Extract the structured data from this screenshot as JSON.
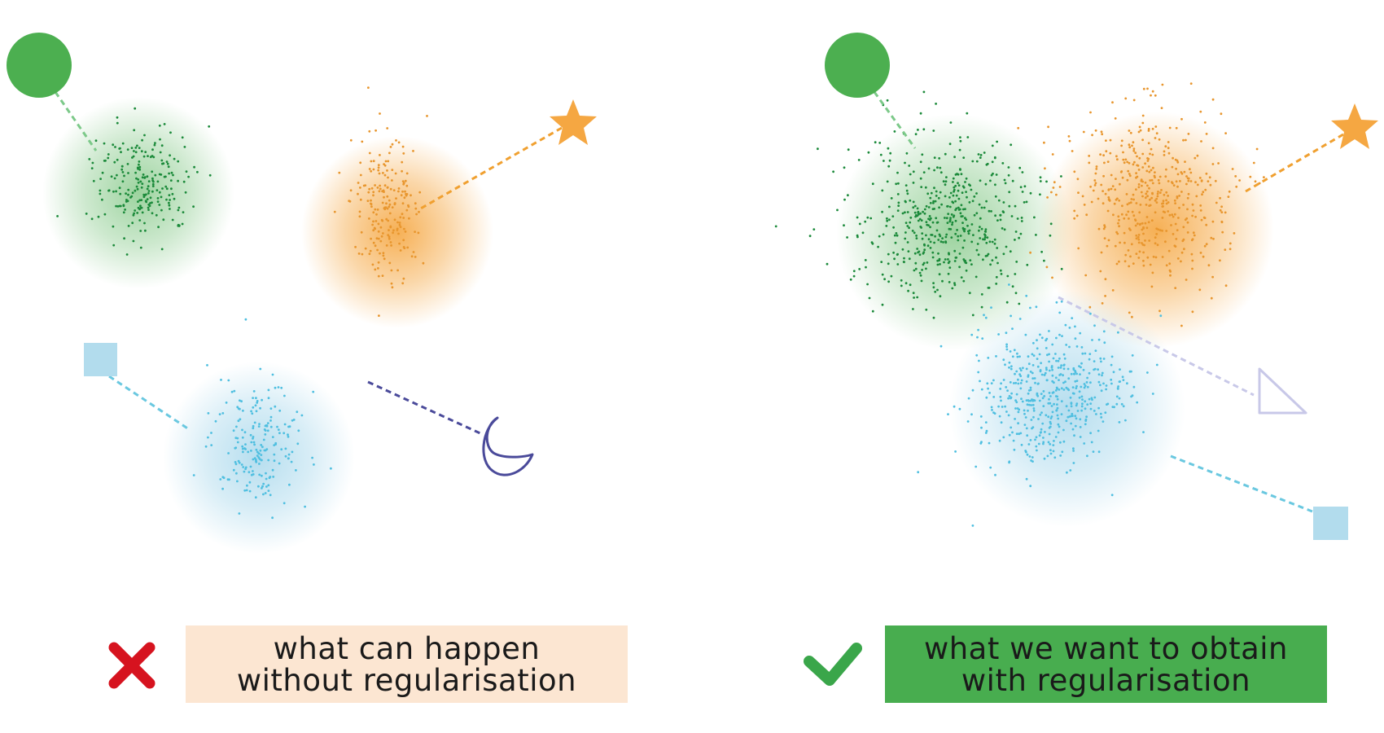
{
  "panels": {
    "left": {
      "status_icon": "cross-icon",
      "caption": {
        "line1": "what can happen",
        "line2": "without regularisation"
      }
    },
    "right": {
      "status_icon": "check-icon",
      "caption": {
        "line1": "what we want to obtain",
        "line2": "with regularisation"
      }
    }
  },
  "legend_shapes": [
    "circle-icon",
    "star-icon",
    "square-icon",
    "crescent-icon",
    "triangle-icon"
  ],
  "colors": {
    "green": "#4caf50",
    "green_dots": "#1b8a3a",
    "orange": "#f5a742",
    "orange_dots": "#e8962e",
    "blue": "#a9d8ec",
    "blue_dots": "#4fbfe0",
    "purple": "#5a5aa8",
    "lavender": "#c8c8e8",
    "cross": "#d6131f",
    "check": "#3aa64a",
    "left_caption_bg": "#fce6d2",
    "right_caption_bg": "#48ad4f"
  }
}
